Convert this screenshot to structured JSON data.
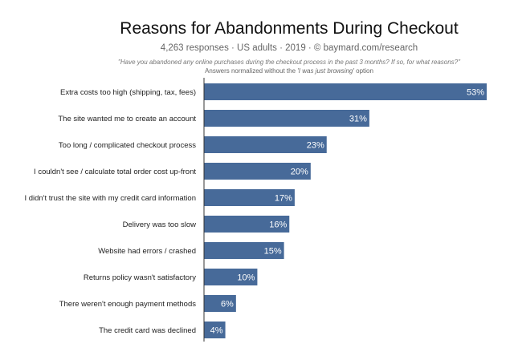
{
  "chart_data": {
    "type": "bar",
    "orientation": "horizontal",
    "title": "Reasons for Abandonments During Checkout",
    "subtitle": "4,263 responses · US adults · 2019 · © baymard.com/research",
    "question": "\"Have you abandoned any online purchases during the checkout process in the past 3 months? If so, for what reasons?\"",
    "note_prefix": "Answers normalized without the ",
    "note_italic": "'I was just browsing'",
    "note_suffix": " option",
    "categories": [
      "Extra costs too high (shipping, tax, fees)",
      "The site wanted me to create an account",
      "Too long / complicated checkout process",
      "I couldn't see / calculate total order cost up-front",
      "I didn't trust the site with my credit card information",
      "Delivery was too slow",
      "Website had errors / crashed",
      "Returns policy wasn't satisfactory",
      "There weren't enough payment methods",
      "The credit card was declined"
    ],
    "values": [
      53,
      31,
      23,
      20,
      17,
      16,
      15,
      10,
      6,
      4
    ],
    "value_labels": [
      "53%",
      "31%",
      "23%",
      "20%",
      "17%",
      "16%",
      "15%",
      "10%",
      "6%",
      "4%"
    ],
    "unit": "%",
    "xlim": [
      0,
      53
    ],
    "grid": false,
    "bar_color": "#476a99"
  }
}
